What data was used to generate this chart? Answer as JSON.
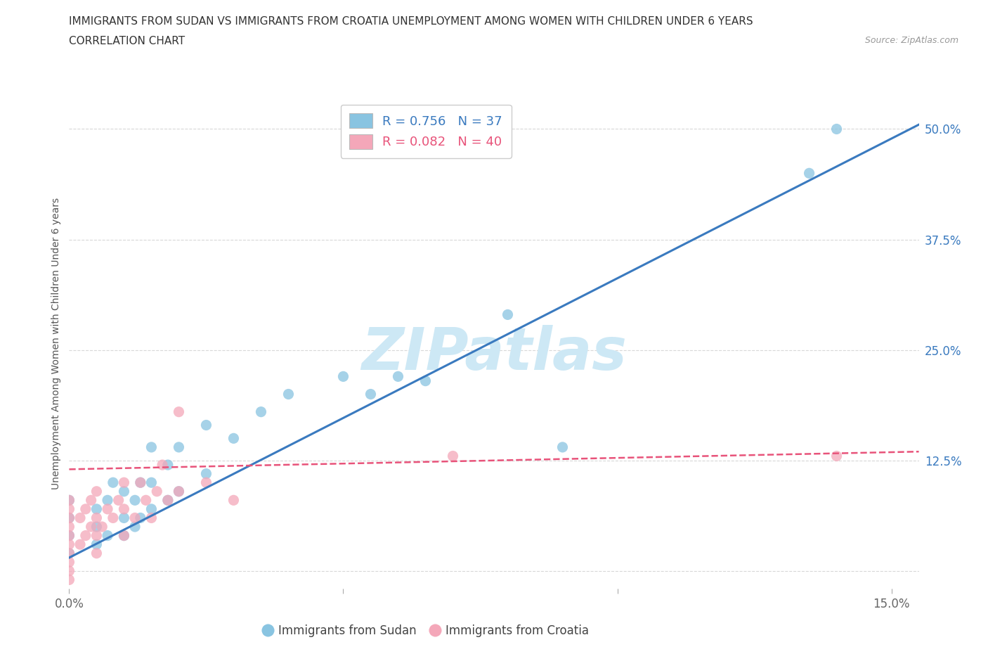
{
  "title_line1": "IMMIGRANTS FROM SUDAN VS IMMIGRANTS FROM CROATIA UNEMPLOYMENT AMONG WOMEN WITH CHILDREN UNDER 6 YEARS",
  "title_line2": "CORRELATION CHART",
  "source": "Source: ZipAtlas.com",
  "ylabel": "Unemployment Among Women with Children Under 6 years",
  "xlim": [
    0.0,
    0.155
  ],
  "ylim": [
    -0.02,
    0.535
  ],
  "yticks": [
    0.0,
    0.125,
    0.25,
    0.375,
    0.5
  ],
  "yticklabels": [
    "",
    "12.5%",
    "25.0%",
    "37.5%",
    "50.0%"
  ],
  "sudan_scatter_x": [
    0.0,
    0.0,
    0.0,
    0.0,
    0.005,
    0.005,
    0.005,
    0.007,
    0.007,
    0.008,
    0.01,
    0.01,
    0.01,
    0.012,
    0.012,
    0.013,
    0.013,
    0.015,
    0.015,
    0.015,
    0.018,
    0.018,
    0.02,
    0.02,
    0.025,
    0.025,
    0.03,
    0.035,
    0.04,
    0.05,
    0.055,
    0.06,
    0.065,
    0.08,
    0.09,
    0.135,
    0.14
  ],
  "sudan_scatter_y": [
    0.02,
    0.04,
    0.06,
    0.08,
    0.03,
    0.05,
    0.07,
    0.04,
    0.08,
    0.1,
    0.04,
    0.06,
    0.09,
    0.05,
    0.08,
    0.06,
    0.1,
    0.07,
    0.1,
    0.14,
    0.08,
    0.12,
    0.09,
    0.14,
    0.11,
    0.165,
    0.15,
    0.18,
    0.2,
    0.22,
    0.2,
    0.22,
    0.215,
    0.29,
    0.14,
    0.45,
    0.5
  ],
  "croatia_scatter_x": [
    0.0,
    0.0,
    0.0,
    0.0,
    0.0,
    0.0,
    0.0,
    0.0,
    0.0,
    0.0,
    0.002,
    0.002,
    0.003,
    0.003,
    0.004,
    0.004,
    0.005,
    0.005,
    0.005,
    0.005,
    0.006,
    0.007,
    0.008,
    0.009,
    0.01,
    0.01,
    0.01,
    0.012,
    0.013,
    0.014,
    0.015,
    0.016,
    0.017,
    0.018,
    0.02,
    0.02,
    0.025,
    0.03,
    0.07,
    0.14
  ],
  "croatia_scatter_y": [
    0.0,
    0.01,
    0.02,
    0.03,
    0.04,
    0.05,
    0.06,
    0.07,
    0.08,
    -0.01,
    0.03,
    0.06,
    0.04,
    0.07,
    0.05,
    0.08,
    0.02,
    0.04,
    0.06,
    0.09,
    0.05,
    0.07,
    0.06,
    0.08,
    0.04,
    0.07,
    0.1,
    0.06,
    0.1,
    0.08,
    0.06,
    0.09,
    0.12,
    0.08,
    0.09,
    0.18,
    0.1,
    0.08,
    0.13,
    0.13
  ],
  "sudan_color": "#89c4e1",
  "croatia_color": "#f4a7b9",
  "sudan_line_color": "#3a7abf",
  "croatia_line_color": "#e8537a",
  "watermark_text": "ZIPatlas",
  "watermark_color": "#cde8f5",
  "grid_color": "#d8d8d8",
  "title_color": "#333333",
  "axis_label_color": "#555555",
  "tick_color": "#666666",
  "right_tick_color": "#3a7abf",
  "legend_r_sudan": "R = 0.756",
  "legend_n_sudan": "N = 37",
  "legend_r_croatia": "R = 0.082",
  "legend_n_croatia": "N = 40",
  "legend_label_sudan": "Immigrants from Sudan",
  "legend_label_croatia": "Immigrants from Croatia"
}
